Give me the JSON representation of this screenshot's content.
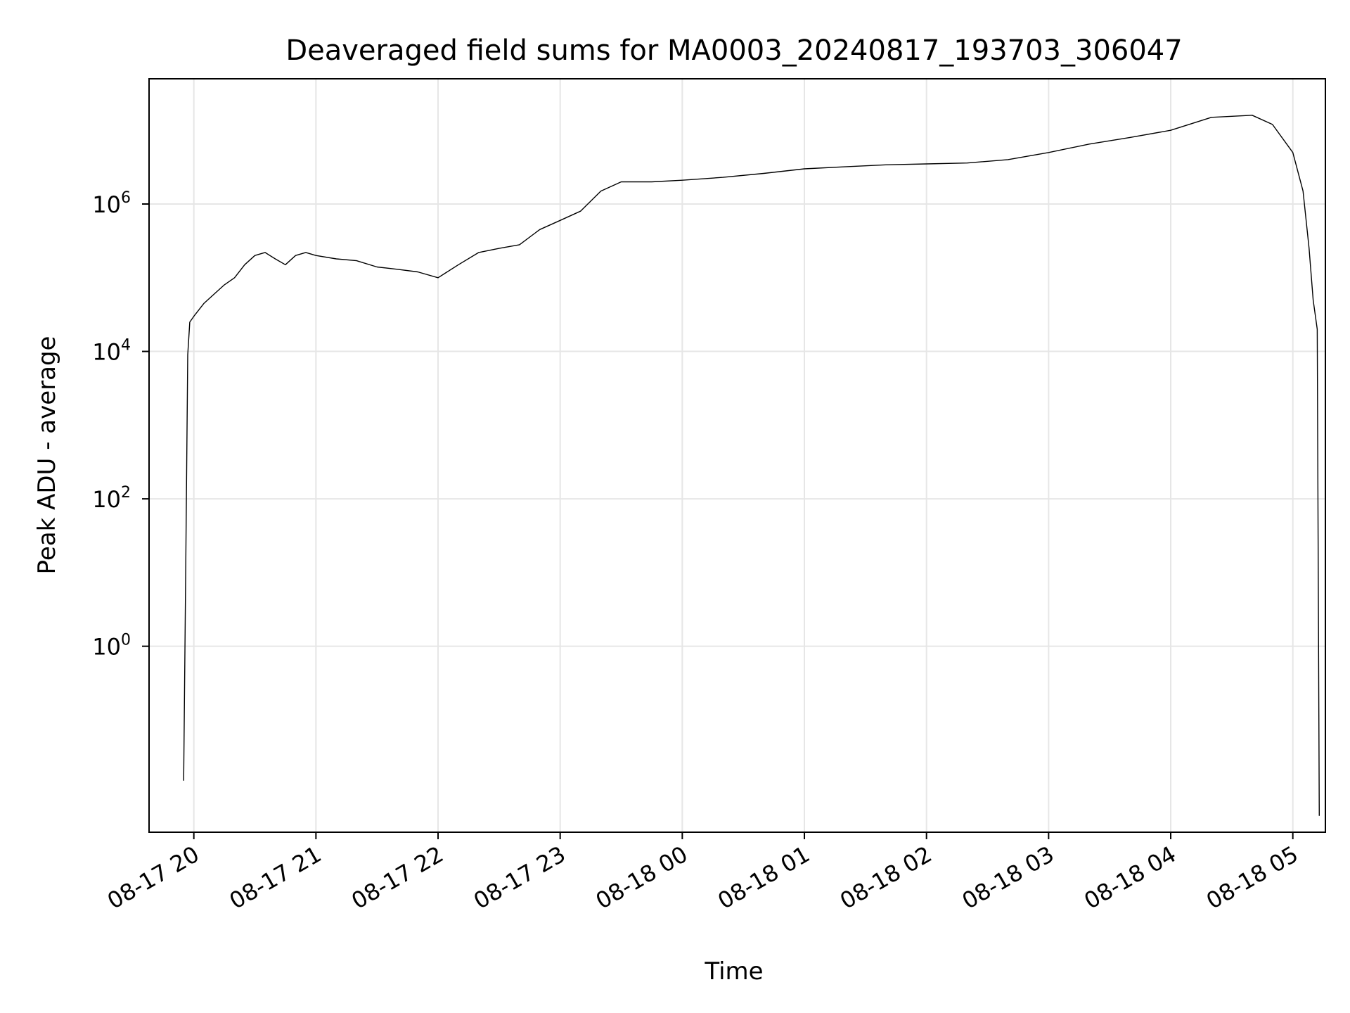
{
  "chart_data": {
    "type": "line",
    "title": "Deaveraged field sums for MA0003_20240817_193703_306047",
    "xlabel": "Time",
    "ylabel": "Peak ADU - average",
    "yscale": "log",
    "grid": true,
    "xlim": [
      "2024-08-17 19:38",
      "2024-08-18 05:16"
    ],
    "ylim": [
      0.003,
      50000000
    ],
    "x_ticks": [
      {
        "label": "08-17 20",
        "value": "2024-08-17 20:00"
      },
      {
        "label": "08-17 21",
        "value": "2024-08-17 21:00"
      },
      {
        "label": "08-17 22",
        "value": "2024-08-17 22:00"
      },
      {
        "label": "08-17 23",
        "value": "2024-08-17 23:00"
      },
      {
        "label": "08-18 00",
        "value": "2024-08-18 00:00"
      },
      {
        "label": "08-18 01",
        "value": "2024-08-18 01:00"
      },
      {
        "label": "08-18 02",
        "value": "2024-08-18 02:00"
      },
      {
        "label": "08-18 03",
        "value": "2024-08-18 03:00"
      },
      {
        "label": "08-18 04",
        "value": "2024-08-18 04:00"
      },
      {
        "label": "08-18 05",
        "value": "2024-08-18 05:00"
      }
    ],
    "y_ticks": [
      {
        "base": "10",
        "exp": "0",
        "value": 1
      },
      {
        "base": "10",
        "exp": "2",
        "value": 100
      },
      {
        "base": "10",
        "exp": "4",
        "value": 10000
      },
      {
        "base": "10",
        "exp": "6",
        "value": 1000000
      }
    ],
    "series": [
      {
        "color": "#000000",
        "x": [
          "2024-08-17 19:55",
          "2024-08-17 19:56",
          "2024-08-17 19:57",
          "2024-08-17 19:58",
          "2024-08-17 20:00",
          "2024-08-17 20:05",
          "2024-08-17 20:10",
          "2024-08-17 20:15",
          "2024-08-17 20:20",
          "2024-08-17 20:25",
          "2024-08-17 20:30",
          "2024-08-17 20:35",
          "2024-08-17 20:40",
          "2024-08-17 20:45",
          "2024-08-17 20:50",
          "2024-08-17 20:55",
          "2024-08-17 21:00",
          "2024-08-17 21:10",
          "2024-08-17 21:20",
          "2024-08-17 21:30",
          "2024-08-17 21:40",
          "2024-08-17 21:50",
          "2024-08-17 22:00",
          "2024-08-17 22:10",
          "2024-08-17 22:20",
          "2024-08-17 22:30",
          "2024-08-17 22:40",
          "2024-08-17 22:50",
          "2024-08-17 23:00",
          "2024-08-17 23:10",
          "2024-08-17 23:20",
          "2024-08-17 23:30",
          "2024-08-17 23:45",
          "2024-08-18 00:00",
          "2024-08-18 00:20",
          "2024-08-18 00:40",
          "2024-08-18 01:00",
          "2024-08-18 01:20",
          "2024-08-18 01:40",
          "2024-08-18 02:00",
          "2024-08-18 02:20",
          "2024-08-18 02:40",
          "2024-08-18 03:00",
          "2024-08-18 03:20",
          "2024-08-18 03:40",
          "2024-08-18 04:00",
          "2024-08-18 04:20",
          "2024-08-18 04:40",
          "2024-08-18 04:50",
          "2024-08-18 05:00",
          "2024-08-18 05:05",
          "2024-08-18 05:08",
          "2024-08-18 05:10",
          "2024-08-18 05:12",
          "2024-08-18 05:13"
        ],
        "y": [
          0.015,
          10,
          9000,
          25000,
          30000,
          45000,
          60000,
          80000,
          100000,
          150000,
          200000,
          220000,
          180000,
          150000,
          200000,
          220000,
          200000,
          180000,
          170000,
          140000,
          130000,
          120000,
          100000,
          150000,
          220000,
          250000,
          280000,
          450000,
          600000,
          800000,
          1500000,
          2000000,
          2000000,
          2100000,
          2300000,
          2600000,
          3000000,
          3200000,
          3400000,
          3500000,
          3600000,
          4000000,
          5000000,
          6500000,
          8000000,
          10000000,
          15000000,
          16000000,
          12000000,
          5000000,
          1500000,
          250000,
          50000,
          20000,
          0.005
        ]
      }
    ]
  }
}
